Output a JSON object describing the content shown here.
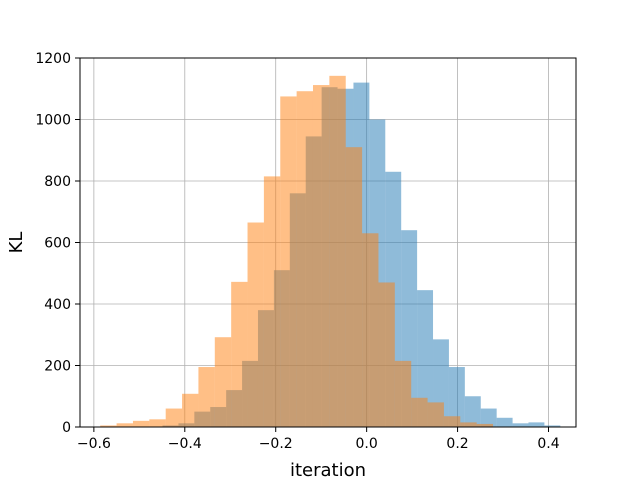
{
  "chart_data": {
    "type": "bar",
    "title": "",
    "xlabel": "iteration",
    "ylabel": "KL",
    "xlim": [
      -0.6305,
      0.4605
    ],
    "ylim": [
      0,
      1200
    ],
    "x_ticks": [
      -0.6,
      -0.4,
      -0.2,
      0.0,
      0.2,
      0.4
    ],
    "x_tick_labels": [
      "−0.6",
      "−0.4",
      "−0.2",
      "0.0",
      "0.2",
      "0.4"
    ],
    "y_ticks": [
      0,
      200,
      400,
      600,
      800,
      1000,
      1200
    ],
    "y_tick_labels": [
      "0",
      "200",
      "400",
      "600",
      "800",
      "1000",
      "1200"
    ],
    "grid": true,
    "legend": "none",
    "series": [
      {
        "color": "#1f77b4",
        "opacity": 0.5,
        "bin_edges": [
          -0.449,
          -0.414,
          -0.379,
          -0.344,
          -0.309,
          -0.274,
          -0.239,
          -0.204,
          -0.169,
          -0.134,
          -0.099,
          -0.064,
          -0.029,
          0.006,
          0.041,
          0.076,
          0.111,
          0.146,
          0.181,
          0.216,
          0.251,
          0.286,
          0.321,
          0.356,
          0.391,
          0.426
        ],
        "values": [
          5,
          12,
          50,
          65,
          120,
          215,
          380,
          510,
          760,
          945,
          1105,
          1100,
          1120,
          1000,
          830,
          640,
          445,
          285,
          195,
          100,
          60,
          30,
          12,
          15,
          5
        ]
      },
      {
        "color": "#ff7f0e",
        "opacity": 0.5,
        "bin_edges": [
          -0.586,
          -0.55,
          -0.514,
          -0.478,
          -0.442,
          -0.406,
          -0.37,
          -0.334,
          -0.298,
          -0.262,
          -0.226,
          -0.19,
          -0.154,
          -0.118,
          -0.082,
          -0.046,
          -0.01,
          0.026,
          0.062,
          0.098,
          0.134,
          0.17,
          0.206,
          0.242,
          0.278
        ],
        "values": [
          5,
          12,
          20,
          25,
          60,
          108,
          195,
          292,
          472,
          665,
          815,
          1075,
          1092,
          1112,
          1142,
          910,
          630,
          470,
          215,
          95,
          80,
          35,
          15,
          10
        ]
      }
    ]
  }
}
